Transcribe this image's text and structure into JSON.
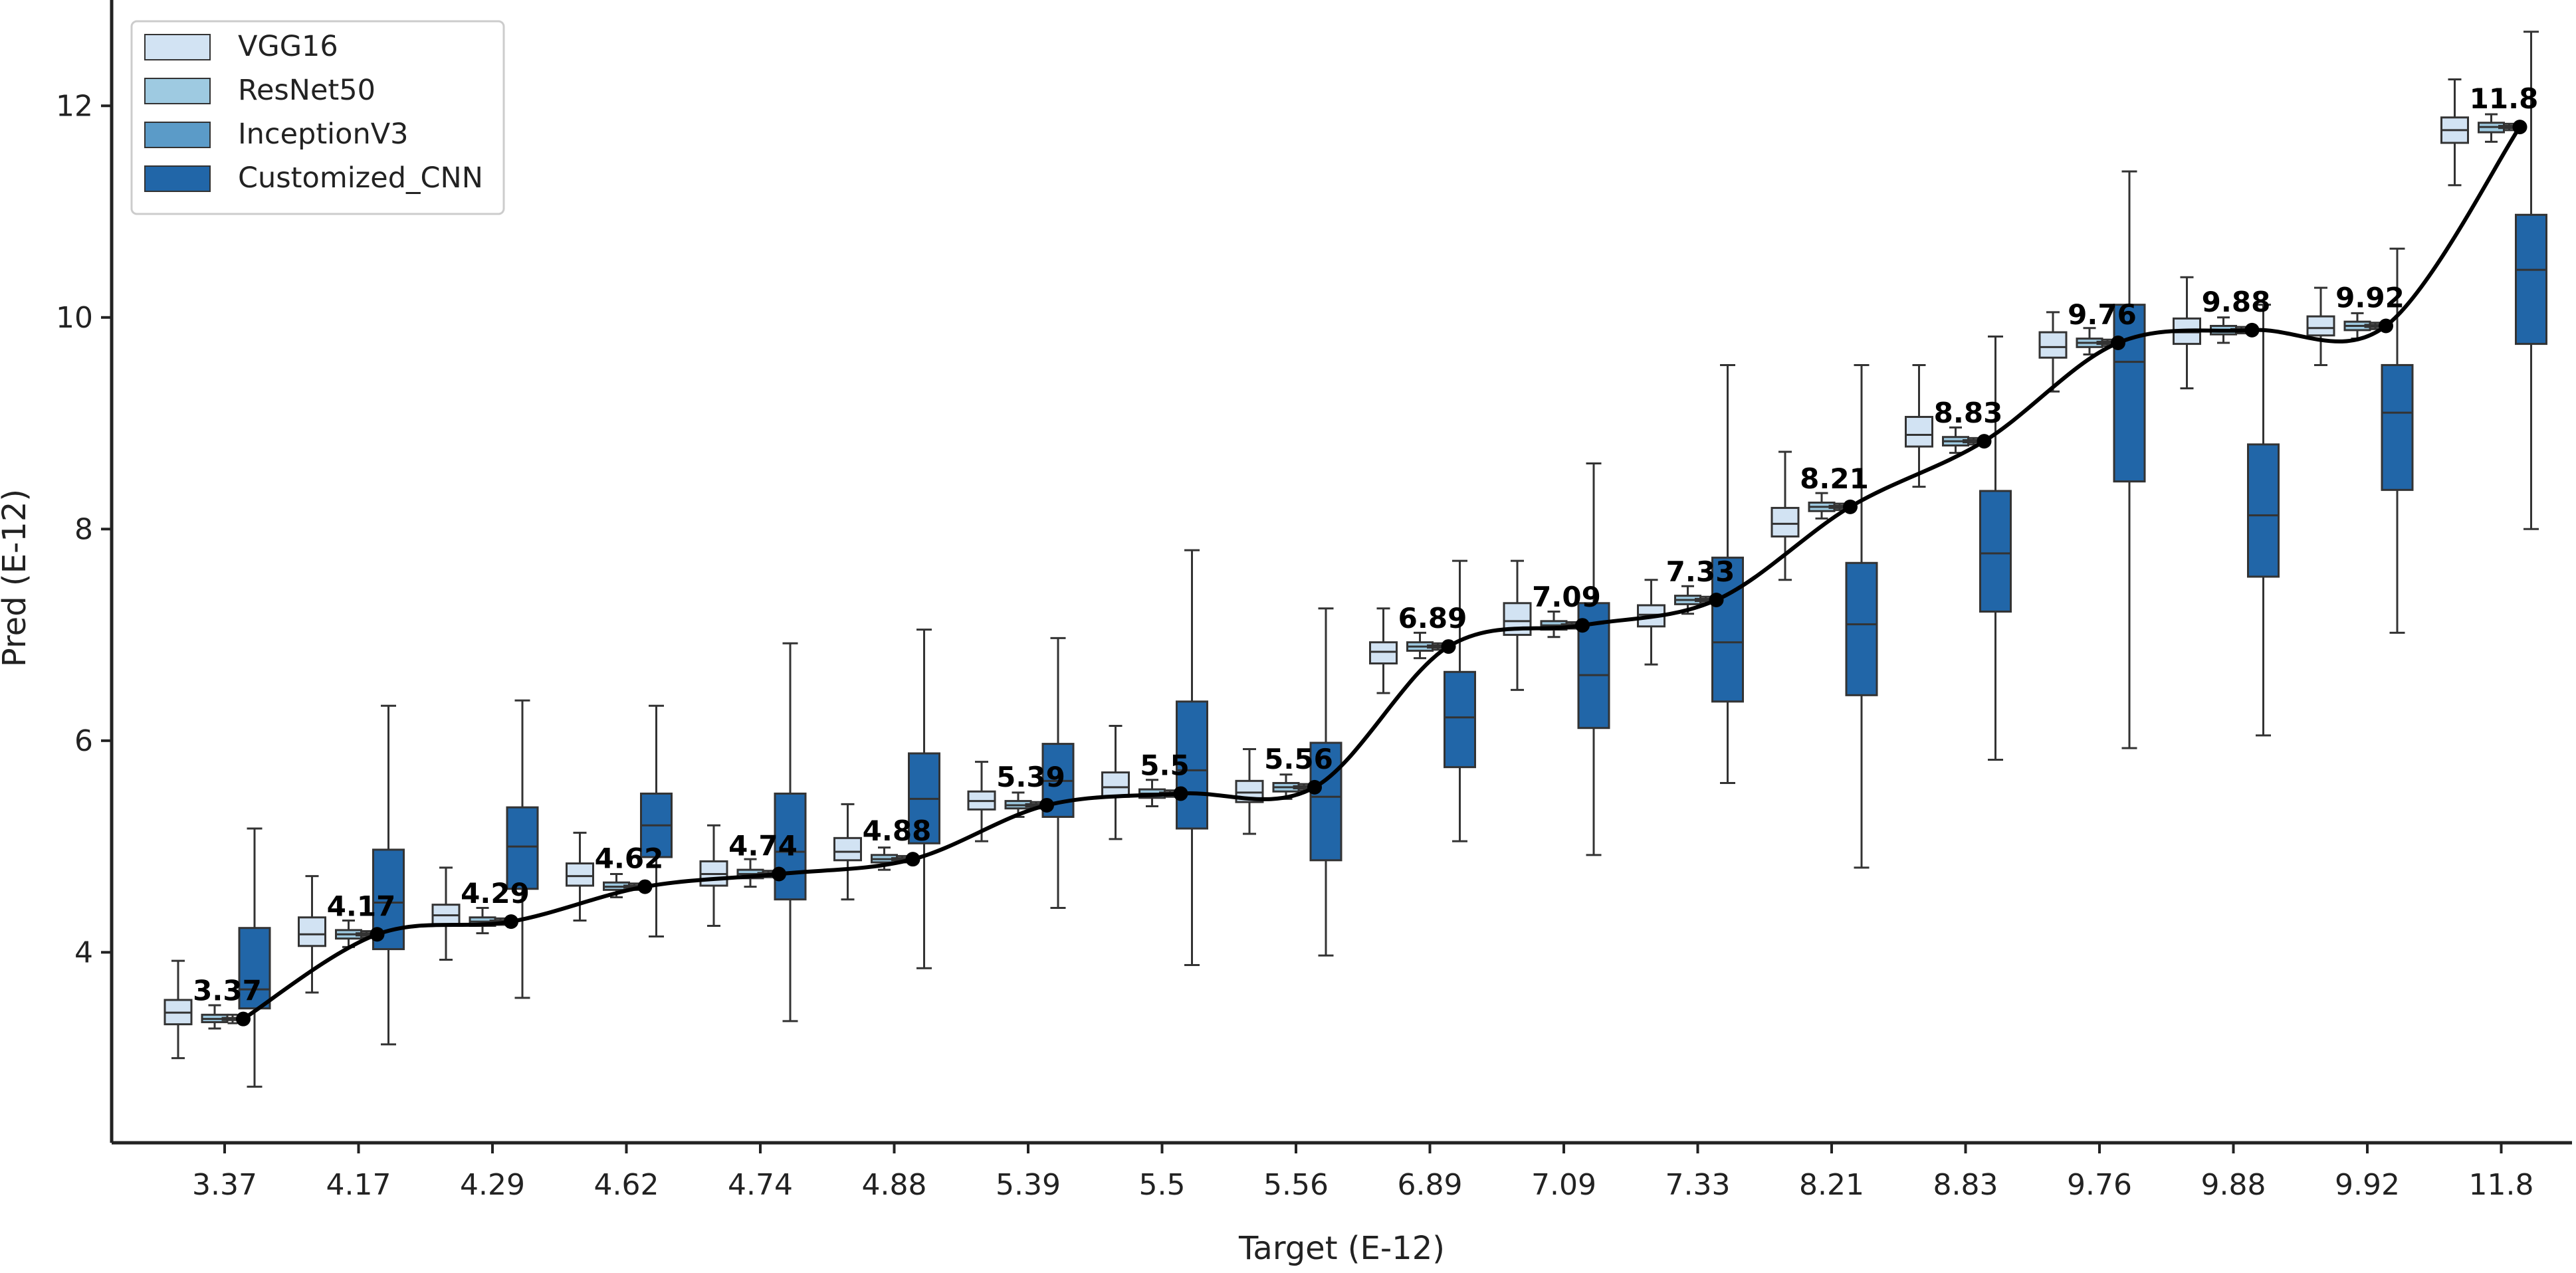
{
  "chart_data": {
    "type": "box",
    "xlabel": "Target (E-12)",
    "ylabel": "Pred (E-12)",
    "ylim": [
      2.2,
      13.0
    ],
    "yticks": [
      4,
      6,
      8,
      10,
      12
    ],
    "categories": [
      "3.37",
      "4.17",
      "4.29",
      "4.62",
      "4.74",
      "4.88",
      "5.39",
      "5.5",
      "5.56",
      "6.89",
      "7.09",
      "7.33",
      "8.21",
      "8.83",
      "9.76",
      "9.88",
      "9.92",
      "11.8"
    ],
    "legend_position": "top-left",
    "series": [
      {
        "name": "VGG16",
        "color": "#d2e3f3",
        "boxes": [
          {
            "whislo": 3.0,
            "q1": 3.32,
            "med": 3.43,
            "q3": 3.55,
            "whishi": 3.92
          },
          {
            "whislo": 3.62,
            "q1": 4.06,
            "med": 4.17,
            "q3": 4.33,
            "whishi": 4.72
          },
          {
            "whislo": 3.93,
            "q1": 4.25,
            "med": 4.35,
            "q3": 4.45,
            "whishi": 4.8
          },
          {
            "whislo": 4.3,
            "q1": 4.63,
            "med": 4.72,
            "q3": 4.84,
            "whishi": 5.13
          },
          {
            "whislo": 4.25,
            "q1": 4.63,
            "med": 4.74,
            "q3": 4.86,
            "whishi": 5.2
          },
          {
            "whislo": 4.5,
            "q1": 4.87,
            "med": 4.95,
            "q3": 5.08,
            "whishi": 5.4
          },
          {
            "whislo": 5.05,
            "q1": 5.35,
            "med": 5.43,
            "q3": 5.52,
            "whishi": 5.8
          },
          {
            "whislo": 5.07,
            "q1": 5.47,
            "med": 5.56,
            "q3": 5.7,
            "whishi": 6.14
          },
          {
            "whislo": 5.12,
            "q1": 5.42,
            "med": 5.51,
            "q3": 5.62,
            "whishi": 5.92
          },
          {
            "whislo": 6.45,
            "q1": 6.73,
            "med": 6.84,
            "q3": 6.93,
            "whishi": 7.25
          },
          {
            "whislo": 6.48,
            "q1": 7.0,
            "med": 7.13,
            "q3": 7.3,
            "whishi": 7.7
          },
          {
            "whislo": 6.72,
            "q1": 7.08,
            "med": 7.19,
            "q3": 7.28,
            "whishi": 7.52
          },
          {
            "whislo": 7.52,
            "q1": 7.93,
            "med": 8.05,
            "q3": 8.2,
            "whishi": 8.73
          },
          {
            "whislo": 8.4,
            "q1": 8.78,
            "med": 8.89,
            "q3": 9.06,
            "whishi": 9.55
          },
          {
            "whislo": 9.3,
            "q1": 9.62,
            "med": 9.72,
            "q3": 9.86,
            "whishi": 10.05
          },
          {
            "whislo": 9.33,
            "q1": 9.75,
            "med": 9.86,
            "q3": 9.99,
            "whishi": 10.38
          },
          {
            "whislo": 9.55,
            "q1": 9.83,
            "med": 9.9,
            "q3": 10.01,
            "whishi": 10.28
          },
          {
            "whislo": 11.25,
            "q1": 11.65,
            "med": 11.77,
            "q3": 11.89,
            "whishi": 12.25
          }
        ]
      },
      {
        "name": "ResNet50",
        "color": "#9ecae1",
        "boxes": [
          {
            "whislo": 3.28,
            "q1": 3.34,
            "med": 3.37,
            "q3": 3.41,
            "whishi": 3.5
          },
          {
            "whislo": 4.05,
            "q1": 4.13,
            "med": 4.17,
            "q3": 4.21,
            "whishi": 4.3
          },
          {
            "whislo": 4.18,
            "q1": 4.25,
            "med": 4.29,
            "q3": 4.33,
            "whishi": 4.42
          },
          {
            "whislo": 4.52,
            "q1": 4.59,
            "med": 4.62,
            "q3": 4.66,
            "whishi": 4.74
          },
          {
            "whislo": 4.62,
            "q1": 4.7,
            "med": 4.74,
            "q3": 4.78,
            "whishi": 4.88
          },
          {
            "whislo": 4.78,
            "q1": 4.85,
            "med": 4.88,
            "q3": 4.92,
            "whishi": 4.99
          },
          {
            "whislo": 5.28,
            "q1": 5.36,
            "med": 5.39,
            "q3": 5.43,
            "whishi": 5.51
          },
          {
            "whislo": 5.38,
            "q1": 5.46,
            "med": 5.5,
            "q3": 5.54,
            "whishi": 5.63
          },
          {
            "whislo": 5.45,
            "q1": 5.52,
            "med": 5.56,
            "q3": 5.6,
            "whishi": 5.68
          },
          {
            "whislo": 6.78,
            "q1": 6.85,
            "med": 6.89,
            "q3": 6.93,
            "whishi": 7.02
          },
          {
            "whislo": 6.98,
            "q1": 7.05,
            "med": 7.09,
            "q3": 7.13,
            "whishi": 7.22
          },
          {
            "whislo": 7.2,
            "q1": 7.29,
            "med": 7.33,
            "q3": 7.37,
            "whishi": 7.46
          },
          {
            "whislo": 8.1,
            "q1": 8.17,
            "med": 8.21,
            "q3": 8.25,
            "whishi": 8.34
          },
          {
            "whislo": 8.72,
            "q1": 8.79,
            "med": 8.83,
            "q3": 8.87,
            "whishi": 8.96
          },
          {
            "whislo": 9.65,
            "q1": 9.72,
            "med": 9.76,
            "q3": 9.8,
            "whishi": 9.9
          },
          {
            "whislo": 9.76,
            "q1": 9.84,
            "med": 9.88,
            "q3": 9.92,
            "whishi": 10.0
          },
          {
            "whislo": 9.8,
            "q1": 9.88,
            "med": 9.92,
            "q3": 9.96,
            "whishi": 10.04
          },
          {
            "whislo": 11.66,
            "q1": 11.75,
            "med": 11.8,
            "q3": 11.84,
            "whishi": 11.92
          }
        ]
      },
      {
        "name": "InceptionV3",
        "color": "#5b9bc8",
        "boxes": [
          {
            "whislo": 3.33,
            "q1": 3.36,
            "med": 3.37,
            "q3": 3.38,
            "whishi": 3.41
          },
          {
            "whislo": 4.14,
            "q1": 4.16,
            "med": 4.17,
            "q3": 4.18,
            "whishi": 4.2
          },
          {
            "whislo": 4.26,
            "q1": 4.28,
            "med": 4.29,
            "q3": 4.3,
            "whishi": 4.32
          },
          {
            "whislo": 4.59,
            "q1": 4.61,
            "med": 4.62,
            "q3": 4.63,
            "whishi": 4.65
          },
          {
            "whislo": 4.71,
            "q1": 4.73,
            "med": 4.74,
            "q3": 4.75,
            "whishi": 4.77
          },
          {
            "whislo": 4.85,
            "q1": 4.87,
            "med": 4.88,
            "q3": 4.89,
            "whishi": 4.91
          },
          {
            "whislo": 5.36,
            "q1": 5.38,
            "med": 5.39,
            "q3": 5.4,
            "whishi": 5.42
          },
          {
            "whislo": 5.47,
            "q1": 5.49,
            "med": 5.5,
            "q3": 5.51,
            "whishi": 5.53
          },
          {
            "whislo": 5.53,
            "q1": 5.55,
            "med": 5.56,
            "q3": 5.57,
            "whishi": 5.59
          },
          {
            "whislo": 6.86,
            "q1": 6.88,
            "med": 6.89,
            "q3": 6.9,
            "whishi": 6.92
          },
          {
            "whislo": 7.06,
            "q1": 7.08,
            "med": 7.09,
            "q3": 7.1,
            "whishi": 7.12
          },
          {
            "whislo": 7.3,
            "q1": 7.32,
            "med": 7.33,
            "q3": 7.34,
            "whishi": 7.36
          },
          {
            "whislo": 8.18,
            "q1": 8.2,
            "med": 8.21,
            "q3": 8.22,
            "whishi": 8.24
          },
          {
            "whislo": 8.8,
            "q1": 8.82,
            "med": 8.83,
            "q3": 8.84,
            "whishi": 8.86
          },
          {
            "whislo": 9.73,
            "q1": 9.75,
            "med": 9.76,
            "q3": 9.77,
            "whishi": 9.79
          },
          {
            "whislo": 9.85,
            "q1": 9.87,
            "med": 9.88,
            "q3": 9.89,
            "whishi": 9.91
          },
          {
            "whislo": 9.89,
            "q1": 9.91,
            "med": 9.92,
            "q3": 9.93,
            "whishi": 9.95
          },
          {
            "whislo": 11.77,
            "q1": 11.79,
            "med": 11.8,
            "q3": 11.81,
            "whishi": 11.83
          }
        ]
      },
      {
        "name": "Customized_CNN",
        "color": "#2166a8",
        "boxes": [
          {
            "whislo": 2.73,
            "q1": 3.47,
            "med": 3.65,
            "q3": 4.23,
            "whishi": 5.17
          },
          {
            "whislo": 3.13,
            "q1": 4.03,
            "med": 4.47,
            "q3": 4.97,
            "whishi": 6.33
          },
          {
            "whislo": 3.57,
            "q1": 4.6,
            "med": 5.0,
            "q3": 5.37,
            "whishi": 6.38
          },
          {
            "whislo": 4.15,
            "q1": 4.9,
            "med": 5.2,
            "q3": 5.5,
            "whishi": 6.33
          },
          {
            "whislo": 3.35,
            "q1": 4.5,
            "med": 4.95,
            "q3": 5.5,
            "whishi": 6.92
          },
          {
            "whislo": 3.85,
            "q1": 5.03,
            "med": 5.45,
            "q3": 5.88,
            "whishi": 7.05
          },
          {
            "whislo": 4.42,
            "q1": 5.28,
            "med": 5.62,
            "q3": 5.97,
            "whishi": 6.97
          },
          {
            "whislo": 3.88,
            "q1": 5.17,
            "med": 5.72,
            "q3": 6.37,
            "whishi": 7.8
          },
          {
            "whislo": 3.97,
            "q1": 4.87,
            "med": 5.47,
            "q3": 5.98,
            "whishi": 7.25
          },
          {
            "whislo": 5.05,
            "q1": 5.75,
            "med": 6.22,
            "q3": 6.65,
            "whishi": 7.7
          },
          {
            "whislo": 4.92,
            "q1": 6.12,
            "med": 6.62,
            "q3": 7.3,
            "whishi": 8.62
          },
          {
            "whislo": 5.6,
            "q1": 6.37,
            "med": 6.93,
            "q3": 7.73,
            "whishi": 9.55
          },
          {
            "whislo": 4.8,
            "q1": 6.43,
            "med": 7.1,
            "q3": 7.68,
            "whishi": 9.55
          },
          {
            "whislo": 5.82,
            "q1": 7.22,
            "med": 7.77,
            "q3": 8.36,
            "whishi": 9.82
          },
          {
            "whislo": 5.93,
            "q1": 8.45,
            "med": 9.58,
            "q3": 10.12,
            "whishi": 11.38
          },
          {
            "whislo": 6.05,
            "q1": 7.55,
            "med": 8.13,
            "q3": 8.8,
            "whishi": 10.12
          },
          {
            "whislo": 7.02,
            "q1": 8.37,
            "med": 9.1,
            "q3": 9.55,
            "whishi": 10.65
          },
          {
            "whislo": 8.0,
            "q1": 9.75,
            "med": 10.45,
            "q3": 10.97,
            "whishi": 12.7
          }
        ]
      },
      {
        "name": "Target",
        "color": "#000000",
        "type": "line",
        "values": [
          3.37,
          4.17,
          4.29,
          4.62,
          4.74,
          4.88,
          5.39,
          5.5,
          5.56,
          6.89,
          7.09,
          7.33,
          8.21,
          8.83,
          9.76,
          9.88,
          9.92,
          11.8
        ],
        "labels": [
          "3.37",
          "4.17",
          "4.29",
          "4.62",
          "4.74",
          "4.88",
          "5.39",
          "5.5",
          "5.56",
          "6.89",
          "7.09",
          "7.33",
          "8.21",
          "8.83",
          "9.76",
          "9.88",
          "9.92",
          "11.8"
        ]
      }
    ]
  }
}
